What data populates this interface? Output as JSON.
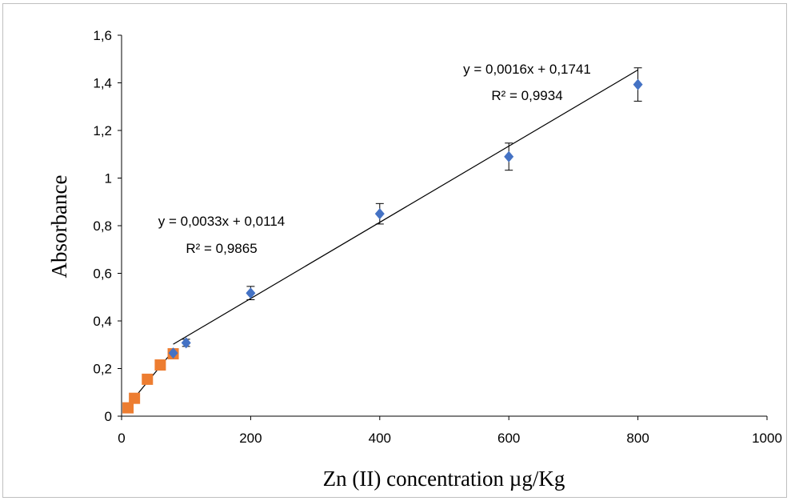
{
  "chart_data": {
    "type": "scatter",
    "title": "",
    "xlabel": "Zn (II) concentration µg/Kg",
    "ylabel": "Absorbance",
    "xlim": [
      0,
      1000
    ],
    "ylim": [
      0,
      1.6
    ],
    "x_ticks": [
      "0",
      "200",
      "400",
      "600",
      "800",
      "1000"
    ],
    "y_ticks": [
      "0",
      "0,2",
      "0,4",
      "0,6",
      "0,8",
      "1",
      "1,2",
      "1,4",
      "1,6"
    ],
    "x_tick_values": [
      0,
      200,
      400,
      600,
      800,
      1000
    ],
    "y_tick_values": [
      0,
      0.2,
      0.4,
      0.6,
      0.8,
      1.0,
      1.2,
      1.4,
      1.6
    ],
    "grid": false,
    "legend": "none",
    "series": [
      {
        "marker": "square",
        "color": "#ed7d31",
        "x": [
          10,
          20,
          40,
          60,
          80
        ],
        "y": [
          0.035,
          0.075,
          0.155,
          0.215,
          0.262
        ],
        "trendline": {
          "slope": 0.0033,
          "intercept": 0.0114,
          "x_range": [
            10,
            80
          ],
          "equation": "y = 0,0033x + 0,0114",
          "r2": "R² = 0,9865"
        }
      },
      {
        "marker": "diamond",
        "color": "#4472c4",
        "x": [
          80,
          100,
          200,
          400,
          600,
          800
        ],
        "y": [
          0.265,
          0.308,
          0.517,
          0.85,
          1.09,
          1.393
        ],
        "err": [
          0.008,
          0.015,
          0.028,
          0.043,
          0.057,
          0.07
        ],
        "trendline": {
          "slope": 0.0016,
          "intercept": 0.1741,
          "x_range": [
            80,
            800
          ],
          "equation": "y = 0,0016x + 0,1741",
          "r2": "R² = 0,9934"
        }
      }
    ]
  }
}
